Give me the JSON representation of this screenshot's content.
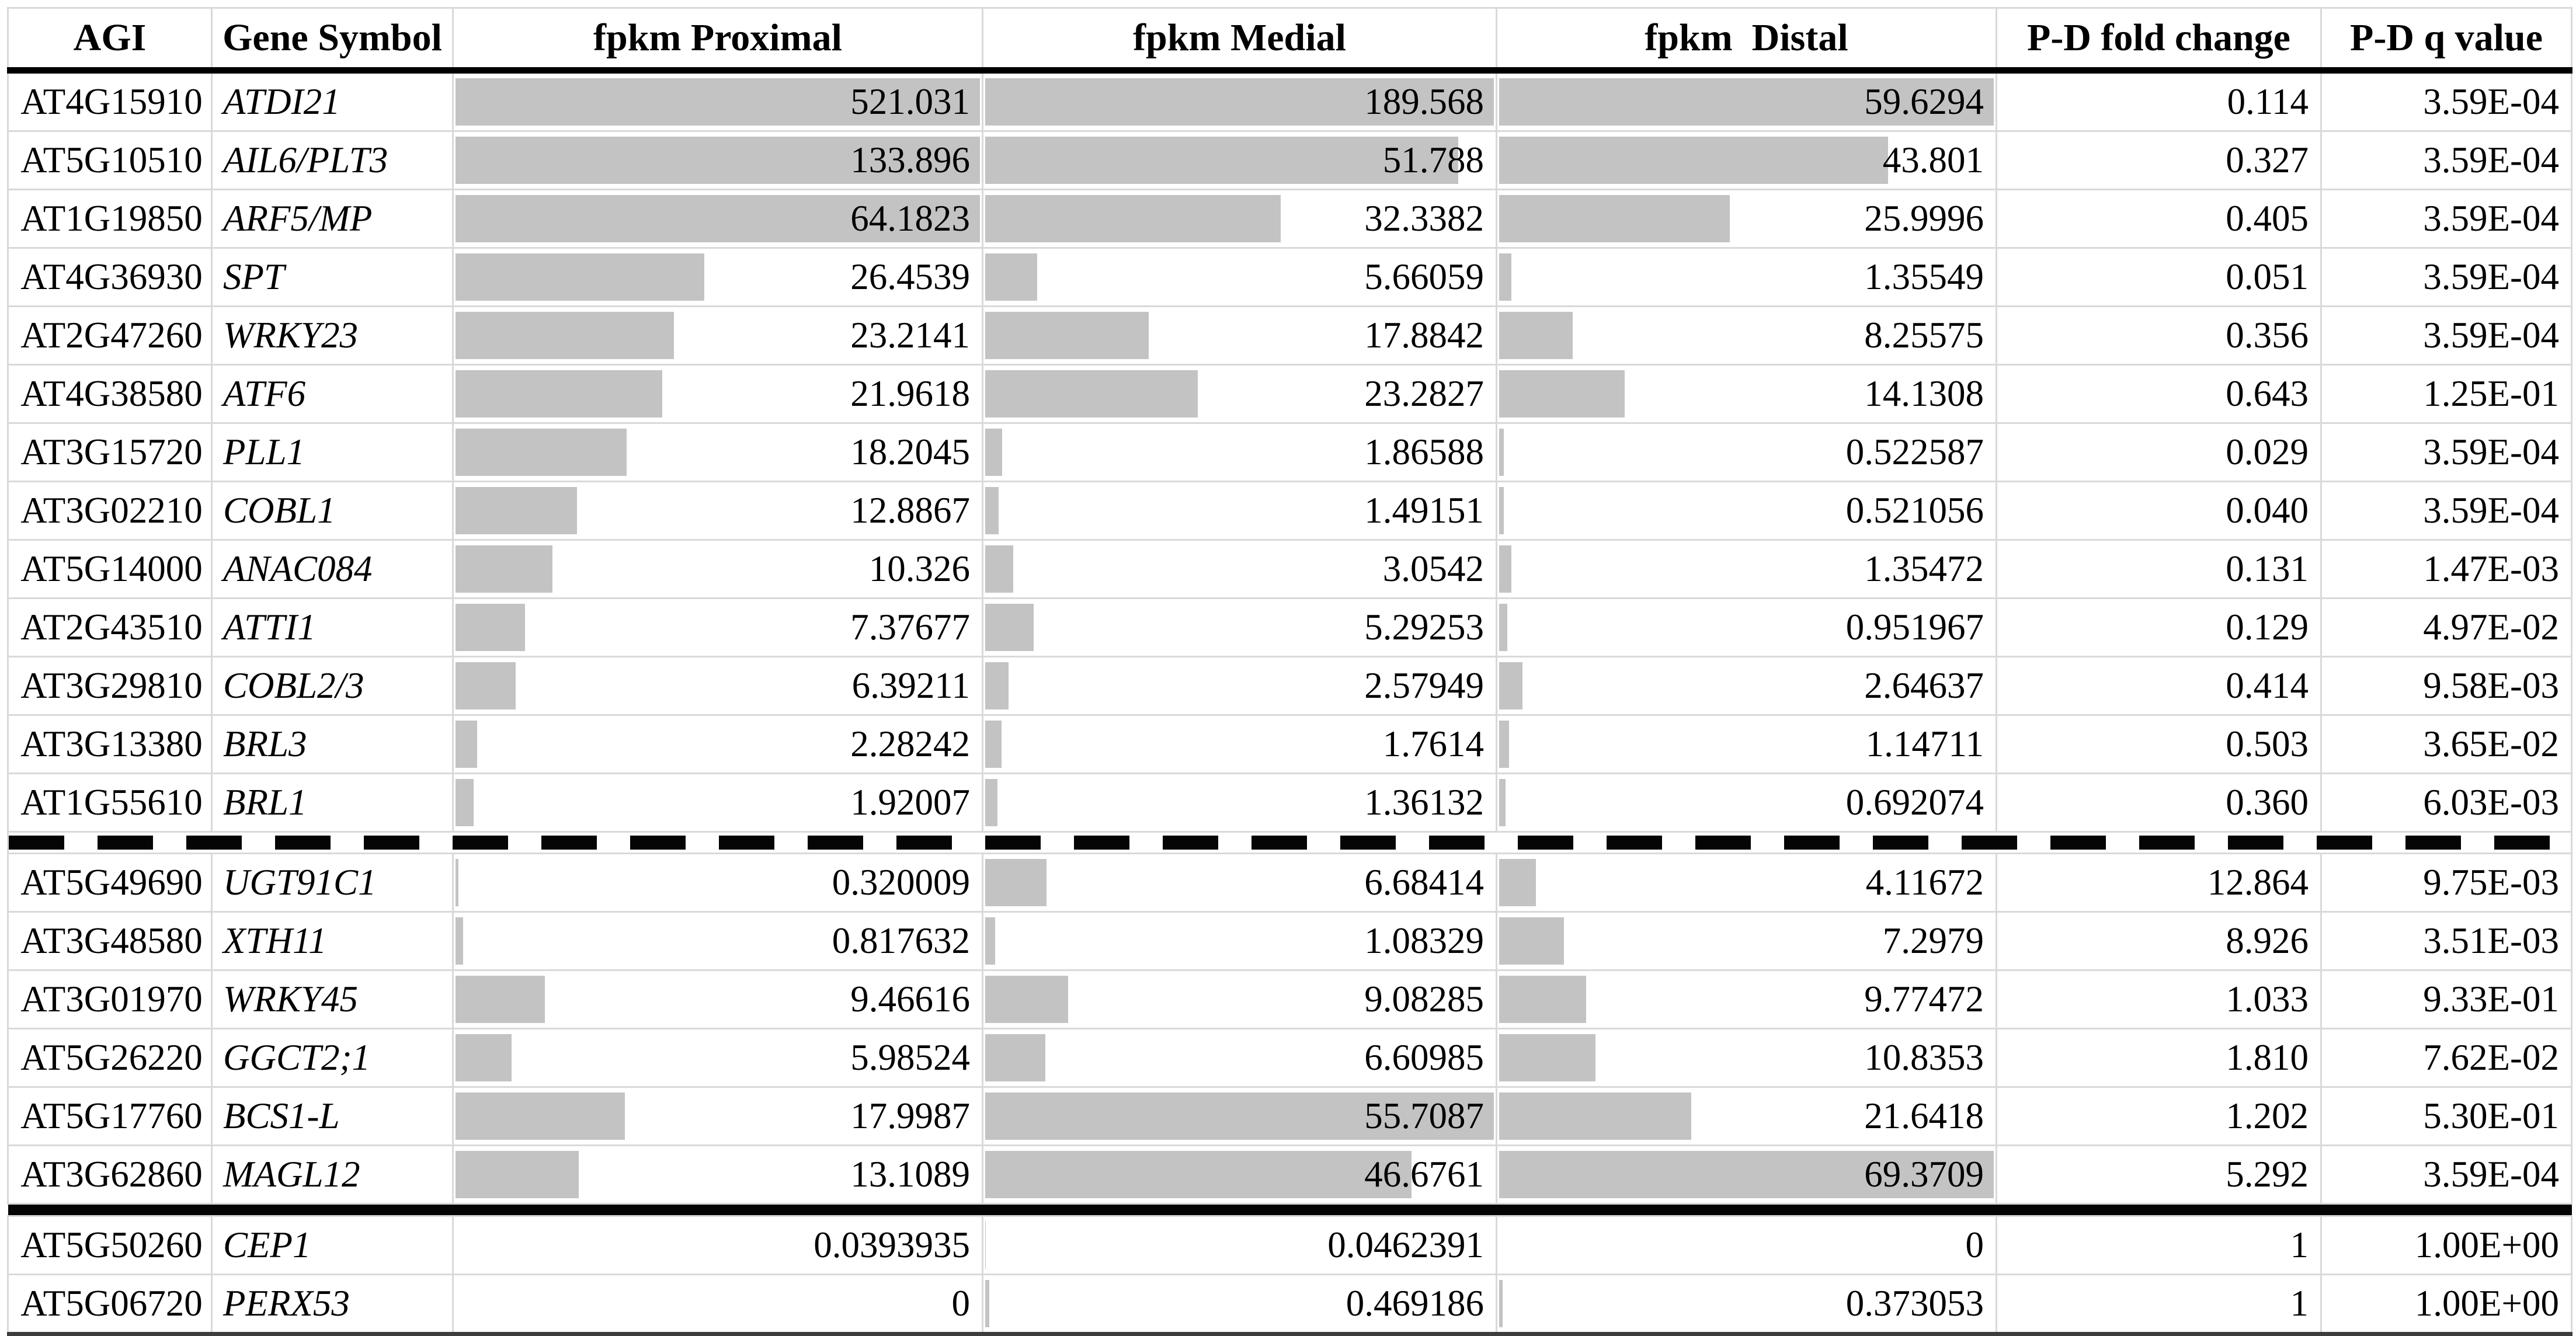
{
  "chart_data": {
    "type": "table",
    "title": "Gene expression table with in-cell data bars (fpkm Proximal / Medial / Distal) and P-D statistics",
    "legend_position": "none",
    "grid_color": "#d9d9d9",
    "bar_color": "#c3c3c3",
    "separator_color": "#050505",
    "bar_axis_max": 55.7087,
    "bar_columns": [
      "fpkm_proximal",
      "fpkm_medial",
      "fpkm_distal"
    ],
    "columns": [
      {
        "id": "agi",
        "label": "AGI"
      },
      {
        "id": "gene_symbol",
        "label": "Gene Symbol"
      },
      {
        "id": "fpkm_proximal",
        "label": "fpkm Proximal"
      },
      {
        "id": "fpkm_medial",
        "label": "fpkm Medial"
      },
      {
        "id": "fpkm_distal",
        "label": "fpkm  Distal"
      },
      {
        "id": "pd_fold_change",
        "label": "P-D fold change"
      },
      {
        "id": "pd_q_value",
        "label": "P-D q value"
      }
    ],
    "separators": [
      {
        "after_section": 0,
        "style": "dashed"
      },
      {
        "after_section": 1,
        "style": "thick-solid"
      }
    ],
    "sections": [
      {
        "id": "proximal-enriched",
        "rows": [
          {
            "agi": "AT4G15910",
            "gene_symbol": "ATDI21",
            "fpkm_proximal": "521.031",
            "fpkm_medial": "189.568",
            "fpkm_distal": "59.6294",
            "pd_fold_change": "0.114",
            "pd_q_value": "3.59E-04"
          },
          {
            "agi": "AT5G10510",
            "gene_symbol": "AIL6/PLT3",
            "fpkm_proximal": "133.896",
            "fpkm_medial": "51.788",
            "fpkm_distal": "43.801",
            "pd_fold_change": "0.327",
            "pd_q_value": "3.59E-04"
          },
          {
            "agi": "AT1G19850",
            "gene_symbol": "ARF5/MP",
            "fpkm_proximal": "64.1823",
            "fpkm_medial": "32.3382",
            "fpkm_distal": "25.9996",
            "pd_fold_change": "0.405",
            "pd_q_value": "3.59E-04"
          },
          {
            "agi": "AT4G36930",
            "gene_symbol": "SPT",
            "fpkm_proximal": "26.4539",
            "fpkm_medial": "5.66059",
            "fpkm_distal": "1.35549",
            "pd_fold_change": "0.051",
            "pd_q_value": "3.59E-04"
          },
          {
            "agi": "AT2G47260",
            "gene_symbol": "WRKY23",
            "fpkm_proximal": "23.2141",
            "fpkm_medial": "17.8842",
            "fpkm_distal": "8.25575",
            "pd_fold_change": "0.356",
            "pd_q_value": "3.59E-04"
          },
          {
            "agi": "AT4G38580",
            "gene_symbol": "ATF6",
            "fpkm_proximal": "21.9618",
            "fpkm_medial": "23.2827",
            "fpkm_distal": "14.1308",
            "pd_fold_change": "0.643",
            "pd_q_value": "1.25E-01"
          },
          {
            "agi": "AT3G15720",
            "gene_symbol": "PLL1",
            "fpkm_proximal": "18.2045",
            "fpkm_medial": "1.86588",
            "fpkm_distal": "0.522587",
            "pd_fold_change": "0.029",
            "pd_q_value": "3.59E-04"
          },
          {
            "agi": "AT3G02210",
            "gene_symbol": "COBL1",
            "fpkm_proximal": "12.8867",
            "fpkm_medial": "1.49151",
            "fpkm_distal": "0.521056",
            "pd_fold_change": "0.040",
            "pd_q_value": "3.59E-04"
          },
          {
            "agi": "AT5G14000",
            "gene_symbol": "ANAC084",
            "fpkm_proximal": "10.326",
            "fpkm_medial": "3.0542",
            "fpkm_distal": "1.35472",
            "pd_fold_change": "0.131",
            "pd_q_value": "1.47E-03"
          },
          {
            "agi": "AT2G43510",
            "gene_symbol": "ATTI1",
            "fpkm_proximal": "7.37677",
            "fpkm_medial": "5.29253",
            "fpkm_distal": "0.951967",
            "pd_fold_change": "0.129",
            "pd_q_value": "4.97E-02"
          },
          {
            "agi": "AT3G29810",
            "gene_symbol": "COBL2/3",
            "fpkm_proximal": "6.39211",
            "fpkm_medial": "2.57949",
            "fpkm_distal": "2.64637",
            "pd_fold_change": "0.414",
            "pd_q_value": "9.58E-03"
          },
          {
            "agi": "AT3G13380",
            "gene_symbol": "BRL3",
            "fpkm_proximal": "2.28242",
            "fpkm_medial": "1.7614",
            "fpkm_distal": "1.14711",
            "pd_fold_change": "0.503",
            "pd_q_value": "3.65E-02"
          },
          {
            "agi": "AT1G55610",
            "gene_symbol": "BRL1",
            "fpkm_proximal": "1.92007",
            "fpkm_medial": "1.36132",
            "fpkm_distal": "0.692074",
            "pd_fold_change": "0.360",
            "pd_q_value": "6.03E-03"
          }
        ]
      },
      {
        "id": "distal-enriched",
        "rows": [
          {
            "agi": "AT5G49690",
            "gene_symbol": "UGT91C1",
            "fpkm_proximal": "0.320009",
            "fpkm_medial": "6.68414",
            "fpkm_distal": "4.11672",
            "pd_fold_change": "12.864",
            "pd_q_value": "9.75E-03"
          },
          {
            "agi": "AT3G48580",
            "gene_symbol": "XTH11",
            "fpkm_proximal": "0.817632",
            "fpkm_medial": "1.08329",
            "fpkm_distal": "7.2979",
            "pd_fold_change": "8.926",
            "pd_q_value": "3.51E-03"
          },
          {
            "agi": "AT3G01970",
            "gene_symbol": "WRKY45",
            "fpkm_proximal": "9.46616",
            "fpkm_medial": "9.08285",
            "fpkm_distal": "9.77472",
            "pd_fold_change": "1.033",
            "pd_q_value": "9.33E-01"
          },
          {
            "agi": "AT5G26220",
            "gene_symbol": "GGCT2;1",
            "fpkm_proximal": "5.98524",
            "fpkm_medial": "6.60985",
            "fpkm_distal": "10.8353",
            "pd_fold_change": "1.810",
            "pd_q_value": "7.62E-02"
          },
          {
            "agi": "AT5G17760",
            "gene_symbol": "BCS1-L",
            "fpkm_proximal": "17.9987",
            "fpkm_medial": "55.7087",
            "fpkm_distal": "21.6418",
            "pd_fold_change": "1.202",
            "pd_q_value": "5.30E-01"
          },
          {
            "agi": "AT3G62860",
            "gene_symbol": "MAGL12",
            "fpkm_proximal": "13.1089",
            "fpkm_medial": "46.6761",
            "fpkm_distal": "69.3709",
            "pd_fold_change": "5.292",
            "pd_q_value": "3.59E-04"
          }
        ]
      },
      {
        "id": "controls",
        "rows": [
          {
            "agi": "AT5G50260",
            "gene_symbol": "CEP1",
            "fpkm_proximal": "0.0393935",
            "fpkm_medial": "0.0462391",
            "fpkm_distal": "0",
            "pd_fold_change": "1",
            "pd_q_value": "1.00E+00"
          },
          {
            "agi": "AT5G06720",
            "gene_symbol": "PERX53",
            "fpkm_proximal": "0",
            "fpkm_medial": "0.469186",
            "fpkm_distal": "0.373053",
            "pd_fold_change": "1",
            "pd_q_value": "1.00E+00"
          }
        ]
      }
    ]
  }
}
